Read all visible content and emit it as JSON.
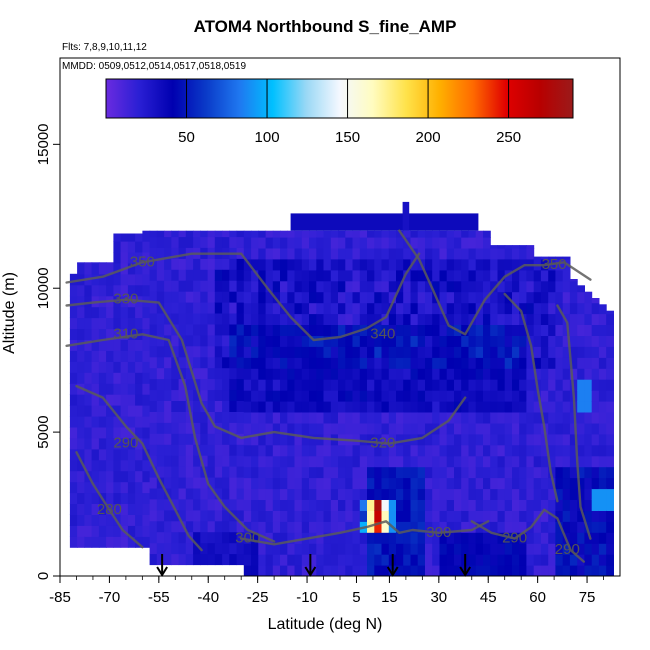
{
  "title": "ATOM4 Northbound S_fine_AMP",
  "flights_note": "Flts: 7,8,9,10,11,12",
  "dates_note": "MMDD: 0509,0512,0514,0517,0518,0519",
  "chart_data": {
    "type": "heatmap",
    "title": "ATOM4 Northbound S_fine_AMP",
    "xlabel": "Latitude (deg N)",
    "ylabel": "Altitude (m)",
    "xlim": [
      -85,
      85
    ],
    "ylim": [
      0,
      18000
    ],
    "x_ticks": [
      -85,
      -70,
      -55,
      -40,
      -25,
      -10,
      5,
      15,
      30,
      45,
      60,
      75
    ],
    "y_ticks": [
      0,
      5000,
      10000,
      15000
    ],
    "colorbar": {
      "min": 0,
      "max": 290,
      "ticks": [
        50,
        100,
        150,
        200,
        250
      ],
      "colors": [
        "#6a2be0",
        "#2a1fd4",
        "#0000b0",
        "#0a3ac8",
        "#1f78f0",
        "#00c0ff",
        "#9ad8f5",
        "#f4f8ff",
        "#fffcc0",
        "#ffe24a",
        "#ffb000",
        "#ff6a00",
        "#e00000",
        "#b80000",
        "#9b1a1a"
      ]
    },
    "grid": false,
    "contour_labels": [
      {
        "text": "350",
        "x": -60,
        "y": 10900
      },
      {
        "text": "330",
        "x": -65,
        "y": 9600
      },
      {
        "text": "310",
        "x": -65,
        "y": 8400
      },
      {
        "text": "340",
        "x": 13,
        "y": 8400
      },
      {
        "text": "350",
        "x": 65,
        "y": 10800
      },
      {
        "text": "290",
        "x": -65,
        "y": 4600
      },
      {
        "text": "320",
        "x": 13,
        "y": 4600
      },
      {
        "text": "280",
        "x": -70,
        "y": 2300
      },
      {
        "text": "300",
        "x": -28,
        "y": 1300
      },
      {
        "text": "300",
        "x": 30,
        "y": 1500
      },
      {
        "text": "290",
        "x": 53,
        "y": 1300
      },
      {
        "text": "290",
        "x": 69,
        "y": 900
      }
    ],
    "arrow_latitudes": [
      -54,
      -9,
      16,
      38
    ],
    "hotspot": {
      "lat_range": [
        5,
        17
      ],
      "alt_range": [
        1400,
        2500
      ],
      "peak_value": 280
    }
  }
}
